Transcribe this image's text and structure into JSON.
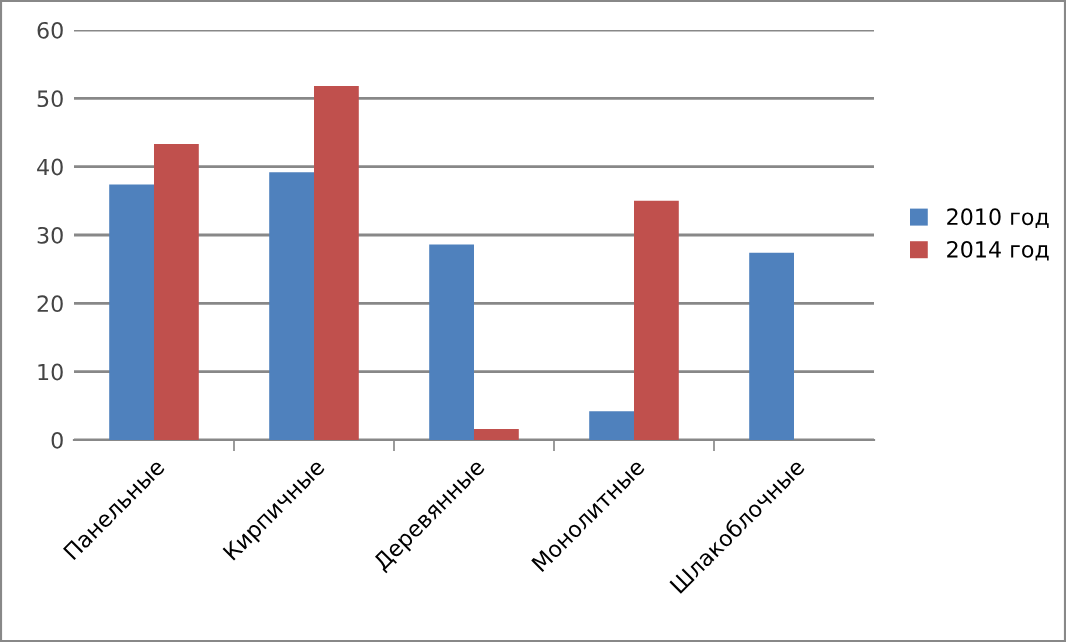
{
  "chart_data": {
    "type": "bar",
    "categories": [
      "Панельные",
      "Кирпичные",
      "Деревянные",
      "Монолитные",
      "Шлакоблочные"
    ],
    "series": [
      {
        "name": "2010 год",
        "color": "#4f81bd",
        "values": [
          37.4,
          39.2,
          28.6,
          4.2,
          27.4
        ]
      },
      {
        "name": "2014 год",
        "color": "#c0504d",
        "values": [
          43.3,
          51.8,
          1.6,
          35.0,
          null
        ]
      }
    ],
    "ylim": [
      0,
      60
    ],
    "yticks": [
      0,
      10,
      20,
      30,
      40,
      50,
      60
    ],
    "grid": "y",
    "legend": "right"
  }
}
